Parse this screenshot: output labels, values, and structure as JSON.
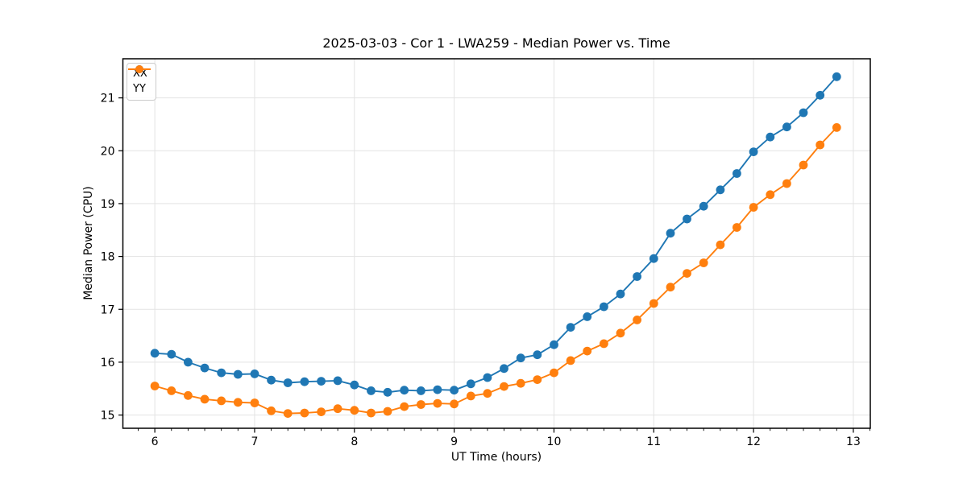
{
  "chart_data": {
    "type": "line",
    "title": "2025-03-03 - Cor 1 - LWA259 - Median Power vs. Time",
    "xlabel": "UT Time (hours)",
    "ylabel": "Median Power (CPU)",
    "xlim": [
      5.68,
      13.17
    ],
    "ylim": [
      14.75,
      21.74
    ],
    "x_major_ticks": [
      6,
      7,
      8,
      9,
      10,
      11,
      12,
      13
    ],
    "x_tick_labels": [
      "6",
      "7",
      "8",
      "9",
      "10",
      "11",
      "12",
      "13"
    ],
    "x_minor_tick_interval": 0.1667,
    "y_major_ticks": [
      15,
      16,
      17,
      18,
      19,
      20,
      21
    ],
    "y_tick_labels": [
      "15",
      "16",
      "17",
      "18",
      "19",
      "20",
      "21"
    ],
    "grid": true,
    "grid_color": "#e3e3e3",
    "spine_color": "#000000",
    "background_color": "#ffffff",
    "legend_position": "upper-left",
    "marker": "circle",
    "x": [
      6.0,
      6.167,
      6.333,
      6.5,
      6.667,
      6.833,
      7.0,
      7.167,
      7.333,
      7.5,
      7.667,
      7.833,
      8.0,
      8.167,
      8.333,
      8.5,
      8.667,
      8.833,
      9.0,
      9.167,
      9.333,
      9.5,
      9.667,
      9.833,
      10.0,
      10.167,
      10.333,
      10.5,
      10.667,
      10.833,
      11.0,
      11.167,
      11.333,
      11.5,
      11.667,
      11.833,
      12.0,
      12.167,
      12.333,
      12.5,
      12.667,
      12.833
    ],
    "series": [
      {
        "name": "XX",
        "color": "#1f77b4",
        "values": [
          16.17,
          16.15,
          16.0,
          15.89,
          15.8,
          15.77,
          15.78,
          15.66,
          15.61,
          15.63,
          15.64,
          15.65,
          15.57,
          15.46,
          15.43,
          15.47,
          15.46,
          15.48,
          15.47,
          15.59,
          15.71,
          15.88,
          16.08,
          16.14,
          16.33,
          16.66,
          16.86,
          17.05,
          17.29,
          17.62,
          17.96,
          18.44,
          18.71,
          18.95,
          19.26,
          19.57,
          19.98,
          20.26,
          20.45,
          20.72,
          21.05,
          21.4
        ]
      },
      {
        "name": "YY",
        "color": "#ff7f0e",
        "values": [
          15.55,
          15.46,
          15.37,
          15.3,
          15.27,
          15.24,
          15.23,
          15.08,
          15.03,
          15.04,
          15.06,
          15.12,
          15.09,
          15.04,
          15.07,
          15.16,
          15.2,
          15.22,
          15.21,
          15.36,
          15.41,
          15.54,
          15.6,
          15.67,
          15.8,
          16.03,
          16.21,
          16.35,
          16.55,
          16.8,
          17.11,
          17.42,
          17.68,
          17.88,
          18.22,
          18.55,
          18.93,
          19.17,
          19.38,
          19.73,
          20.11,
          20.44
        ]
      }
    ]
  }
}
